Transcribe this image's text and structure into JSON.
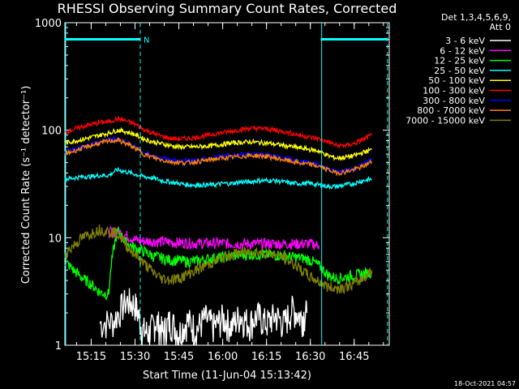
{
  "chart_data": {
    "type": "line",
    "title": "RHESSI Observing Summary Count Rates, Corrected",
    "xlabel": "Start Time (11-Jun-04 15:13:42)",
    "ylabel": "Corrected Count Rate (s⁻¹ detector⁻¹)",
    "yscale": "log",
    "ylim": [
      1,
      1000
    ],
    "xlim": [
      15.1,
      16.95
    ],
    "x_ticks": [
      {
        "v": 15.25,
        "label": "15:15"
      },
      {
        "v": 15.5,
        "label": "15:30"
      },
      {
        "v": 15.75,
        "label": "15:45"
      },
      {
        "v": 16.0,
        "label": "16:00"
      },
      {
        "v": 16.25,
        "label": "16:15"
      },
      {
        "v": 16.5,
        "label": "16:30"
      },
      {
        "v": 16.75,
        "label": "16:45"
      }
    ],
    "y_ticks": [
      {
        "v": 1,
        "label": "1"
      },
      {
        "v": 10,
        "label": "10"
      },
      {
        "v": 100,
        "label": "100"
      },
      {
        "v": 1000,
        "label": "1000"
      }
    ],
    "legend_header": [
      "Det 1,3,4,5,6,9,",
      "Att 0"
    ],
    "series": [
      {
        "name": "3 - 6 keV",
        "color": "#ffffff",
        "x": [
          15.3,
          15.38,
          15.45,
          15.5,
          15.54,
          15.58,
          15.62,
          15.66,
          15.7,
          15.75,
          15.8,
          15.85,
          15.9,
          15.95,
          16.0,
          16.05,
          16.1,
          16.15,
          16.2,
          16.25,
          16.3,
          16.35,
          16.4,
          16.45,
          16.48
        ],
        "values": [
          1.6,
          1.7,
          2.6,
          2.4,
          1.4,
          1.3,
          1.7,
          1.3,
          1.7,
          1.3,
          1.7,
          1.4,
          1.8,
          1.5,
          1.8,
          1.5,
          1.9,
          1.6,
          1.9,
          1.6,
          1.9,
          1.6,
          2.2,
          1.8,
          2.0
        ]
      },
      {
        "name": "6 - 12 keV",
        "color": "#ff00ff",
        "x": [
          15.35,
          15.4,
          15.45,
          15.5,
          15.55,
          15.6,
          15.65,
          15.7,
          15.75,
          15.8,
          15.85,
          15.9,
          15.95,
          16.0,
          16.05,
          16.1,
          16.15,
          16.2,
          16.25,
          16.3,
          16.35,
          16.4,
          16.45,
          16.5,
          16.55
        ],
        "values": [
          11.2,
          11.5,
          10.5,
          9.6,
          9.3,
          9.3,
          9.2,
          9.1,
          9.0,
          9.0,
          8.9,
          8.9,
          8.9,
          8.9,
          8.8,
          8.8,
          8.8,
          8.8,
          8.8,
          8.8,
          8.8,
          8.8,
          8.8,
          8.8,
          8.5
        ]
      },
      {
        "name": "12 - 25 keV",
        "color": "#00ff00",
        "x": [
          15.1,
          15.15,
          15.2,
          15.25,
          15.3,
          15.35,
          15.4,
          15.45,
          15.5,
          15.55,
          15.6,
          15.65,
          15.7,
          15.75,
          15.8,
          15.85,
          15.9,
          15.95,
          16.0,
          16.05,
          16.1,
          16.15,
          16.2,
          16.25,
          16.3,
          16.35,
          16.4,
          16.45,
          16.5,
          16.55,
          16.6,
          16.65,
          16.7,
          16.75,
          16.8,
          16.85
        ],
        "values": [
          6.0,
          5.0,
          4.2,
          3.7,
          3.1,
          3.0,
          11.5,
          9.0,
          8.0,
          7.5,
          6.8,
          6.5,
          6.2,
          6.2,
          6.0,
          6.1,
          6.3,
          6.5,
          6.6,
          6.8,
          6.9,
          7.0,
          7.0,
          7.0,
          6.9,
          6.8,
          6.6,
          6.5,
          6.2,
          5.5,
          4.5,
          4.2,
          4.3,
          4.5,
          4.6,
          4.8
        ]
      },
      {
        "name": "25 - 50 keV",
        "color": "#00ffff",
        "x": [
          15.1,
          15.15,
          15.2,
          15.25,
          15.3,
          15.35,
          15.4,
          15.45,
          15.5,
          15.55,
          15.6,
          15.65,
          15.7,
          15.75,
          15.8,
          15.85,
          15.9,
          15.95,
          16.0,
          16.05,
          16.1,
          16.15,
          16.2,
          16.25,
          16.3,
          16.35,
          16.4,
          16.45,
          16.5,
          16.55,
          16.6,
          16.65,
          16.7,
          16.75,
          16.8,
          16.85
        ],
        "values": [
          35,
          36,
          37,
          37,
          38,
          38,
          43,
          41,
          39,
          37,
          36,
          34,
          33,
          32,
          31,
          31,
          31,
          31,
          32,
          32,
          33,
          33,
          34,
          34,
          34,
          33,
          32,
          32,
          32,
          31,
          30,
          30,
          31,
          32,
          34,
          35
        ]
      },
      {
        "name": "50 - 100 keV",
        "color": "#ffff00",
        "x": [
          15.1,
          15.15,
          15.2,
          15.25,
          15.3,
          15.35,
          15.4,
          15.45,
          15.5,
          15.55,
          15.6,
          15.65,
          15.7,
          15.75,
          15.8,
          15.85,
          15.9,
          15.95,
          16.0,
          16.05,
          16.1,
          16.15,
          16.2,
          16.25,
          16.3,
          16.35,
          16.4,
          16.45,
          16.5,
          16.55,
          16.6,
          16.65,
          16.7,
          16.75,
          16.8,
          16.85
        ],
        "values": [
          76,
          79,
          82,
          86,
          90,
          94,
          100,
          97,
          91,
          83,
          78,
          75,
          72,
          70,
          70,
          70,
          71,
          72,
          74,
          76,
          77,
          78,
          77,
          76,
          74,
          72,
          70,
          68,
          66,
          64,
          58,
          55,
          56,
          58,
          62,
          66
        ]
      },
      {
        "name": "100 - 300 keV",
        "color": "#ff0000",
        "x": [
          15.1,
          15.15,
          15.2,
          15.25,
          15.3,
          15.35,
          15.4,
          15.45,
          15.5,
          15.55,
          15.6,
          15.65,
          15.7,
          15.75,
          15.8,
          15.85,
          15.9,
          15.95,
          16.0,
          16.05,
          16.1,
          16.15,
          16.2,
          16.25,
          16.3,
          16.35,
          16.4,
          16.45,
          16.5,
          16.55,
          16.6,
          16.65,
          16.7,
          16.75,
          16.8,
          16.85
        ],
        "values": [
          95,
          102,
          108,
          113,
          118,
          120,
          128,
          122,
          114,
          102,
          94,
          88,
          84,
          83,
          84,
          86,
          89,
          92,
          95,
          98,
          101,
          104,
          104,
          103,
          100,
          97,
          93,
          89,
          86,
          83,
          78,
          72,
          72,
          75,
          82,
          90
        ]
      },
      {
        "name": "300 - 800 keV",
        "color": "#0000ff",
        "x": [
          15.1,
          15.15,
          15.2,
          15.25,
          15.3,
          15.35,
          15.4,
          15.45,
          15.5,
          15.55,
          15.6,
          15.65,
          15.7,
          15.75,
          15.8,
          15.85,
          15.9,
          15.95,
          16.0,
          16.05,
          16.1,
          16.15,
          16.2,
          16.25,
          16.3,
          16.35,
          16.4,
          16.45,
          16.5,
          16.55,
          16.6,
          16.65,
          16.7,
          16.75,
          16.8,
          16.85
        ],
        "values": [
          62,
          66,
          70,
          74,
          78,
          81,
          84,
          78,
          70,
          62,
          58,
          55,
          53,
          52,
          52,
          53,
          54,
          56,
          57,
          58,
          59,
          60,
          60,
          59,
          57,
          55,
          53,
          51,
          50,
          48,
          44,
          41,
          42,
          44,
          48,
          53
        ]
      },
      {
        "name": "800 - 7000 keV",
        "color": "#ff8000",
        "x": [
          15.1,
          15.15,
          15.2,
          15.25,
          15.3,
          15.35,
          15.4,
          15.45,
          15.5,
          15.55,
          15.6,
          15.65,
          15.7,
          15.75,
          15.8,
          15.85,
          15.9,
          15.95,
          16.0,
          16.05,
          16.1,
          16.15,
          16.2,
          16.25,
          16.3,
          16.35,
          16.4,
          16.45,
          16.5,
          16.55,
          16.6,
          16.65,
          16.7,
          16.75,
          16.8,
          16.85
        ],
        "values": [
          60,
          64,
          68,
          72,
          76,
          79,
          81,
          75,
          68,
          60,
          56,
          53,
          51,
          50,
          50,
          51,
          52,
          54,
          55,
          56,
          57,
          58,
          58,
          57,
          55,
          53,
          51,
          49,
          48,
          46,
          43,
          40,
          41,
          43,
          46,
          51
        ]
      },
      {
        "name": "7000 - 15000 keV",
        "color": "#808000",
        "x": [
          15.1,
          15.15,
          15.2,
          15.25,
          15.3,
          15.35,
          15.4,
          15.45,
          15.5,
          15.55,
          15.6,
          15.65,
          15.7,
          15.75,
          15.8,
          15.85,
          15.9,
          15.95,
          16.0,
          16.05,
          16.1,
          16.15,
          16.2,
          16.25,
          16.3,
          16.35,
          16.4,
          16.45,
          16.5,
          16.55,
          16.6,
          16.65,
          16.7,
          16.75,
          16.8,
          16.85
        ],
        "values": [
          7.0,
          8.5,
          10.0,
          11.0,
          12.0,
          11.5,
          11.0,
          8.5,
          7.0,
          5.8,
          4.8,
          4.2,
          4.1,
          4.2,
          4.6,
          5.0,
          5.5,
          6.0,
          6.5,
          7.0,
          7.3,
          7.4,
          7.4,
          7.2,
          7.0,
          6.5,
          5.8,
          5.0,
          4.3,
          3.9,
          3.5,
          3.4,
          3.5,
          3.7,
          4.2,
          5.0
        ]
      }
    ],
    "annotations": {
      "interval_bars": [
        {
          "x1": 15.1,
          "x2": 15.53,
          "label": "N"
        },
        {
          "x1": 16.56,
          "x2": 16.94,
          "label": ""
        }
      ],
      "vlines_solid": [
        15.1,
        16.56
      ],
      "vlines_dashed": [
        15.53,
        16.94
      ],
      "interval_color": "#00ffff"
    },
    "footer": "18-Oct-2021 04:57"
  }
}
